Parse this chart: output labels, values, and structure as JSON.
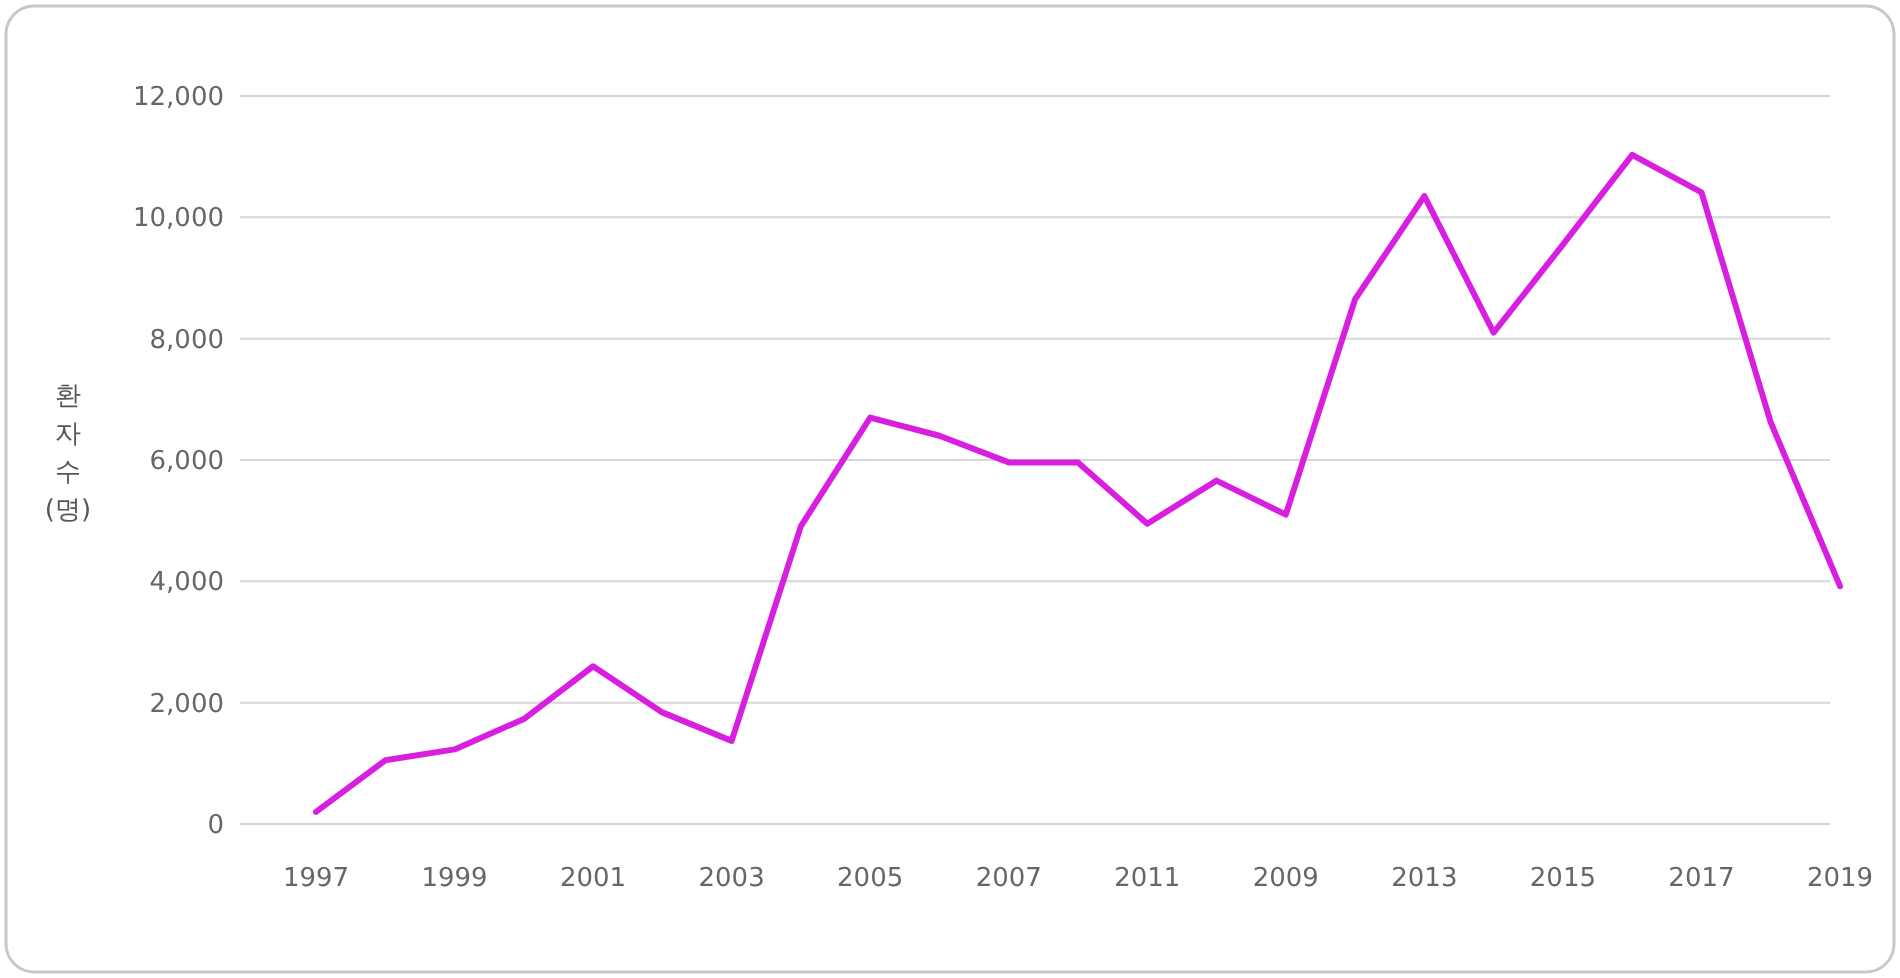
{
  "chart_data": {
    "type": "line",
    "ylabel": "환자수(명)",
    "categories": [
      "1997",
      null,
      "1999",
      null,
      "2001",
      null,
      "2003",
      null,
      "2005",
      null,
      "2007",
      null,
      "2011",
      null,
      "2009",
      null,
      "2013",
      null,
      "2015",
      null,
      "2017",
      null,
      "2019"
    ],
    "series": [
      {
        "color": "#d81fe0",
        "values": [
          200,
          1050,
          1230,
          1730,
          2600,
          1840,
          1370,
          4910,
          6700,
          6400,
          5960,
          5960,
          4950,
          5660,
          5100,
          8650,
          10350,
          8100,
          9550,
          11030,
          10410,
          6620,
          3920
        ]
      }
    ],
    "ylim": [
      0,
      12000
    ],
    "yticks": [
      {
        "value": 0,
        "label": "0"
      },
      {
        "value": 2000,
        "label": "2,000"
      },
      {
        "value": 4000,
        "label": "4,000"
      },
      {
        "value": 6000,
        "label": "6,000"
      },
      {
        "value": 8000,
        "label": "8,000"
      },
      {
        "value": 10000,
        "label": "10,000"
      },
      {
        "value": 12000,
        "label": "12,000"
      }
    ],
    "grid": "y",
    "marker": "none",
    "line_style": "solid"
  }
}
